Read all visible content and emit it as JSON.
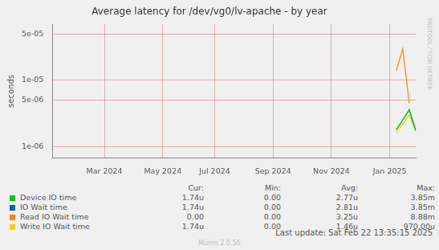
{
  "chart_data": {
    "type": "line",
    "title": "Average latency for /dev/vg0/lv-apache - by year",
    "y_label": "seconds",
    "log": "y",
    "grid": true,
    "categories": [
      null,
      null,
      null,
      null,
      null,
      null,
      null,
      null,
      "Mar 2024",
      null,
      null,
      null,
      null,
      null,
      null,
      null,
      null,
      "May 2024",
      null,
      null,
      null,
      null,
      null,
      null,
      null,
      "Jul 2024",
      null,
      null,
      null,
      null,
      null,
      null,
      null,
      null,
      "Sep 2024",
      null,
      null,
      null,
      null,
      null,
      null,
      null,
      null,
      "Nov 2024",
      null,
      null,
      null,
      null,
      null,
      null,
      null,
      null,
      "Jan 2025",
      null,
      null,
      null,
      null
    ],
    "ylim": [
      6.7e-07,
      7e-05
    ],
    "yticks": [
      {
        "value": 1e-06,
        "label": "1e-06"
      },
      {
        "value": 5e-06,
        "label": "5e-06"
      },
      {
        "value": 1e-05,
        "label": "1e-05"
      },
      {
        "value": 5e-05,
        "label": "5e-05"
      }
    ],
    "stats_columns": [
      "Cur:",
      "Min:",
      "Avg:",
      "Max:"
    ],
    "series": [
      {
        "name": "Device IO time",
        "color": "#00cc00",
        "stats": [
          "1.74u",
          "0.00",
          "2.77u",
          "3.85m"
        ],
        "values": [
          null,
          null,
          null,
          null,
          null,
          null,
          null,
          null,
          null,
          null,
          null,
          null,
          null,
          null,
          null,
          null,
          null,
          null,
          null,
          null,
          null,
          null,
          null,
          null,
          null,
          null,
          null,
          null,
          null,
          null,
          null,
          null,
          null,
          null,
          null,
          null,
          null,
          null,
          null,
          null,
          null,
          null,
          null,
          null,
          null,
          null,
          null,
          null,
          null,
          null,
          null,
          null,
          null,
          1.8e-06,
          2.5e-06,
          3.6e-06,
          1.74e-06
        ]
      },
      {
        "name": "IO Wait time",
        "color": "#0066b3",
        "stats": [
          "1.74u",
          "0.00",
          "2.81u",
          "3.85m"
        ],
        "values": [
          null,
          null,
          null,
          null,
          null,
          null,
          null,
          null,
          null,
          null,
          null,
          null,
          null,
          null,
          null,
          null,
          null,
          null,
          null,
          null,
          null,
          null,
          null,
          null,
          null,
          null,
          null,
          null,
          null,
          null,
          null,
          null,
          null,
          null,
          null,
          null,
          null,
          null,
          null,
          null,
          null,
          null,
          null,
          null,
          null,
          null,
          null,
          null,
          null,
          null,
          null,
          null,
          null,
          1.8e-06,
          2.5e-06,
          3.6e-06,
          1.74e-06
        ]
      },
      {
        "name": "Read IO Wait time",
        "color": "#ff8000",
        "stats": [
          "0.00",
          "0.00",
          "3.25u",
          "8.88m"
        ],
        "values": [
          null,
          null,
          null,
          null,
          null,
          null,
          null,
          null,
          null,
          null,
          null,
          null,
          null,
          null,
          null,
          null,
          null,
          null,
          null,
          null,
          null,
          null,
          null,
          null,
          null,
          null,
          null,
          null,
          null,
          null,
          null,
          null,
          null,
          null,
          null,
          null,
          null,
          null,
          null,
          null,
          null,
          null,
          null,
          null,
          null,
          null,
          null,
          null,
          null,
          null,
          null,
          null,
          null,
          1.4e-05,
          3e-05,
          4.5e-06,
          null
        ]
      },
      {
        "name": "Write IO Wait time",
        "color": "#ffcc00",
        "stats": [
          "1.74u",
          "0.00",
          "1.46u",
          "970.00u"
        ],
        "values": [
          null,
          null,
          null,
          null,
          null,
          null,
          null,
          null,
          null,
          null,
          null,
          null,
          null,
          null,
          null,
          null,
          null,
          null,
          null,
          null,
          null,
          null,
          null,
          null,
          null,
          null,
          null,
          null,
          null,
          null,
          null,
          null,
          null,
          null,
          null,
          null,
          null,
          null,
          null,
          null,
          null,
          null,
          null,
          null,
          null,
          null,
          null,
          null,
          null,
          null,
          null,
          null,
          null,
          1.6e-06,
          2.2e-06,
          3e-06,
          1.74e-06
        ]
      }
    ],
    "annotations": [
      "Last update: Sat Feb 22 13:35:15 2025",
      "Munin 2.0.56",
      "RRDTOOL / TOBI OETIKER"
    ]
  }
}
